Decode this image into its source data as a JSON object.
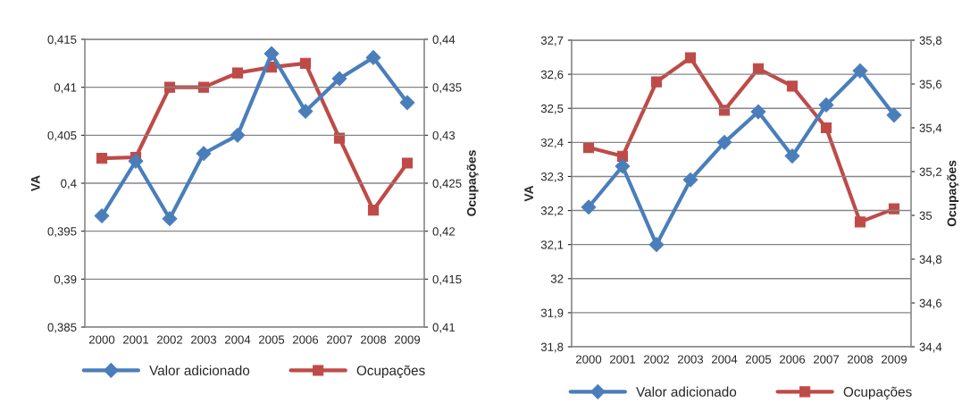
{
  "chart_data": [
    {
      "type": "line",
      "ylabel": "VA",
      "y2label": "Ocupações",
      "categories": [
        "2000",
        "2001",
        "2002",
        "2003",
        "2004",
        "2005",
        "2006",
        "2007",
        "2008",
        "2009"
      ],
      "series": [
        {
          "name": "Valor adicionado",
          "color": "#4a7ebb",
          "marker": "diamond",
          "values": [
            0.3966,
            0.4023,
            0.3963,
            0.4031,
            0.405,
            0.4135,
            0.4075,
            0.4109,
            0.4131,
            0.4084
          ]
        },
        {
          "name": "Ocupações",
          "color": "#be4b48",
          "marker": "square",
          "axis": "y2",
          "values": [
            0.4276,
            0.4277,
            0.435,
            0.435,
            0.4365,
            0.4371,
            0.4375,
            0.4297,
            0.4222,
            0.4271
          ]
        }
      ],
      "ylim": [
        0.385,
        0.415
      ],
      "yticks": [
        {
          "value": 0.385,
          "label": "0,385"
        },
        {
          "value": 0.39,
          "label": "0,39"
        },
        {
          "value": 0.395,
          "label": "0,395"
        },
        {
          "value": 0.4,
          "label": "0,4"
        },
        {
          "value": 0.405,
          "label": "0,405"
        },
        {
          "value": 0.41,
          "label": "0,41"
        },
        {
          "value": 0.415,
          "label": "0,415"
        }
      ],
      "y2lim": [
        0.41,
        0.44
      ],
      "y2ticks": [
        {
          "value": 0.41,
          "label": "0,41"
        },
        {
          "value": 0.415,
          "label": "0,415"
        },
        {
          "value": 0.42,
          "label": "0,42"
        },
        {
          "value": 0.425,
          "label": "0,425"
        },
        {
          "value": 0.43,
          "label": "0,43"
        },
        {
          "value": 0.435,
          "label": "0,435"
        },
        {
          "value": 0.44,
          "label": "0,44"
        }
      ],
      "grid": "y",
      "legend": "bottom"
    },
    {
      "type": "line",
      "ylabel": "VA",
      "y2label": "Ocupações",
      "categories": [
        "2000",
        "2001",
        "2002",
        "2003",
        "2004",
        "2005",
        "2006",
        "2007",
        "2008",
        "2009"
      ],
      "series": [
        {
          "name": "Valor adicionado",
          "color": "#4a7ebb",
          "marker": "diamond",
          "values": [
            32.21,
            32.33,
            32.1,
            32.29,
            32.4,
            32.49,
            32.36,
            32.51,
            32.61,
            32.48
          ]
        },
        {
          "name": "Ocupações",
          "color": "#be4b48",
          "marker": "square",
          "axis": "y2",
          "values": [
            35.31,
            35.27,
            35.61,
            35.72,
            35.48,
            35.67,
            35.59,
            35.4,
            34.97,
            35.03
          ]
        }
      ],
      "ylim": [
        31.8,
        32.7
      ],
      "yticks": [
        {
          "value": 31.8,
          "label": "31,8"
        },
        {
          "value": 31.9,
          "label": "31,9"
        },
        32,
        {
          "value": 32.1,
          "label": "32,1"
        },
        {
          "value": 32.2,
          "label": "32,2"
        },
        {
          "value": 32.3,
          "label": "32,3"
        },
        {
          "value": 32.4,
          "label": "32,4"
        },
        {
          "value": 32.5,
          "label": "32,5"
        },
        {
          "value": 32.6,
          "label": "32,6"
        },
        {
          "value": 32.7,
          "label": "32,7"
        }
      ],
      "y2lim": [
        34.4,
        35.8
      ],
      "y2ticks": [
        {
          "value": 34.4,
          "label": "34,4"
        },
        {
          "value": 34.6,
          "label": "34,6"
        },
        {
          "value": 34.8,
          "label": "34,8"
        },
        35,
        {
          "value": 35.2,
          "label": "35,2"
        },
        {
          "value": 35.4,
          "label": "35,4"
        },
        {
          "value": 35.6,
          "label": "35,6"
        },
        {
          "value": 35.8,
          "label": "35,8"
        }
      ],
      "grid": "y",
      "legend": "bottom"
    }
  ]
}
